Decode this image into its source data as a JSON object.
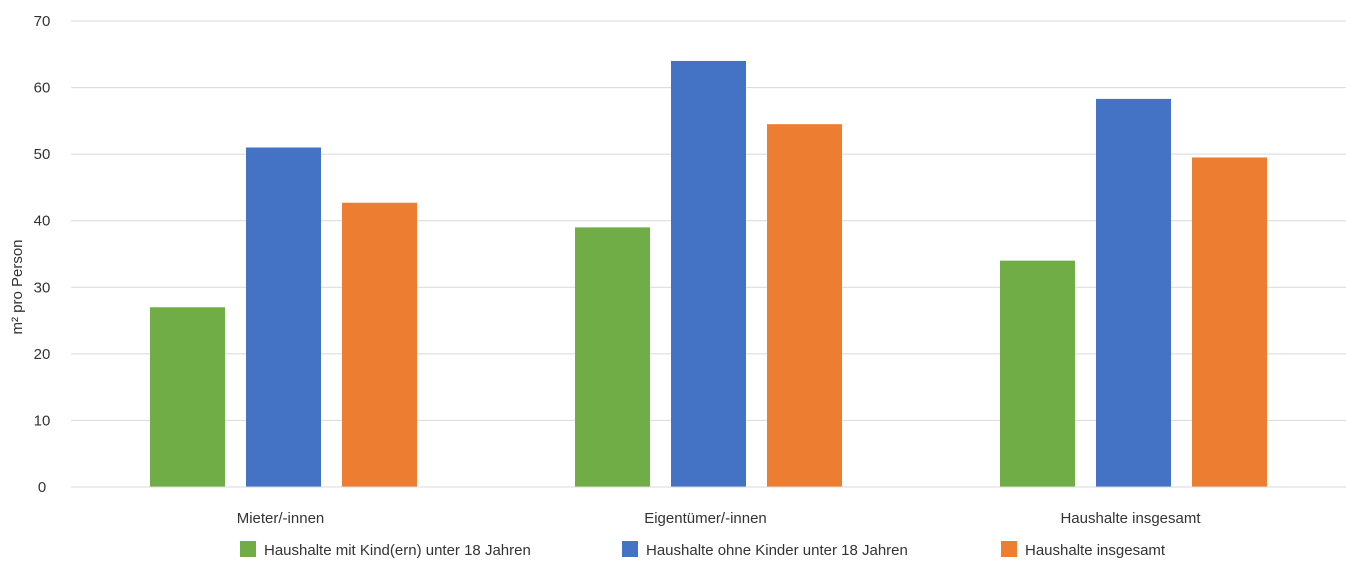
{
  "chart_data": {
    "type": "bar",
    "title": "",
    "xlabel": "",
    "ylabel": "m² pro Person",
    "ylim": [
      0,
      70
    ],
    "yticks": [
      0,
      10,
      20,
      30,
      40,
      50,
      60,
      70
    ],
    "grid": true,
    "legend_position": "bottom",
    "categories": [
      "Mieter/-innen",
      "Eigentümer/-innen",
      "Haushalte insgesamt"
    ],
    "series": [
      {
        "name": "Haushalte mit Kind(ern) unter 18 Jahren",
        "color": "#70AD47",
        "values": [
          27,
          39,
          34
        ]
      },
      {
        "name": "Haushalte ohne Kinder unter 18 Jahren",
        "color": "#4472C4",
        "values": [
          51,
          64,
          58.3
        ]
      },
      {
        "name": "Haushalte insgesamt",
        "color": "#ED7D31",
        "values": [
          42.7,
          54.5,
          49.5
        ]
      }
    ]
  }
}
